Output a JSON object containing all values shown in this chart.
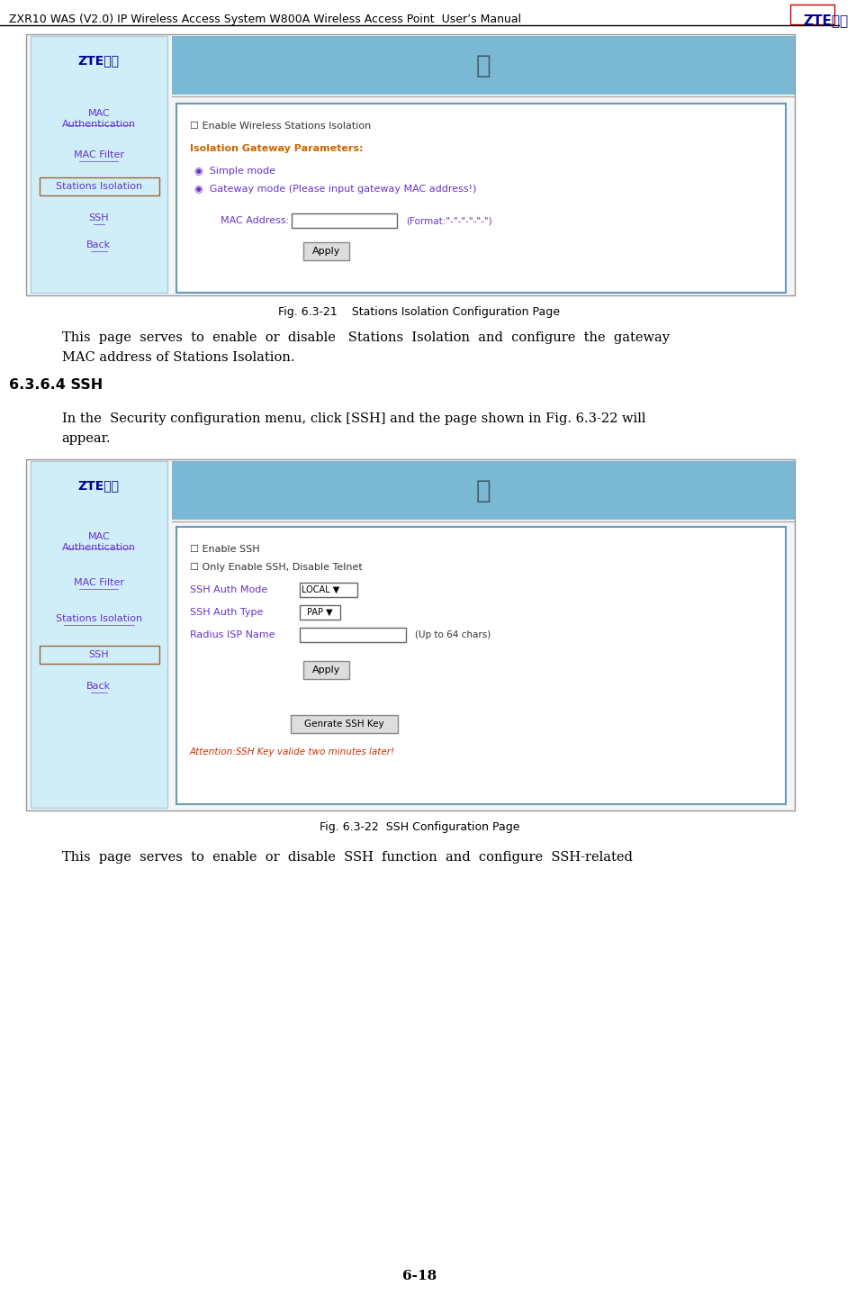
{
  "page_title": "ZXR10 WAS (V2.0) IP Wireless Access System W800A Wireless Access Point  User’s Manual",
  "page_number": "6-18",
  "header_line_color": "#000000",
  "bg_color": "#ffffff",
  "fig1_caption": "Fig. 6.3-21    Stations Isolation Configuration Page",
  "fig2_caption": "Fig. 6.3-22  SSH Configuration Page",
  "section_heading": "6.3.6.4 SSH",
  "para1_line1": "This  page  serves  to  enable  or  disable   Stations  Isolation  and  configure  the  gateway",
  "para1_line2": "MAC address of Stations Isolation.",
  "para2_line1": "In the  Security configuration menu, click [SSH] and the page shown in Fig. 6.3-22 will",
  "para2_line2": "appear.",
  "para3": "This  page  serves  to  enable  or  disable  SSH  function  and  configure  SSH-related",
  "nav_items": [
    "MAC\nAuthentication",
    "MAC Filter",
    "Stations Isolation",
    "SSH",
    "Back"
  ],
  "nav_items2": [
    "MAC\nAuthentication",
    "MAC Filter",
    "Stations Isolation",
    "SSH",
    "Back"
  ],
  "nav_highlight1": "Stations Isolation",
  "nav_highlight2": "SSH",
  "panel_bg": "#e8f4f8",
  "panel_border": "#6699cc",
  "nav_bg": "#d0eef8",
  "nav_border": "#aaccdd",
  "link_color": "#6633cc",
  "highlight_border": "#996633",
  "content_text_color": "#6633cc",
  "label_color": "#cc6600",
  "zte_text_color": "#000099"
}
